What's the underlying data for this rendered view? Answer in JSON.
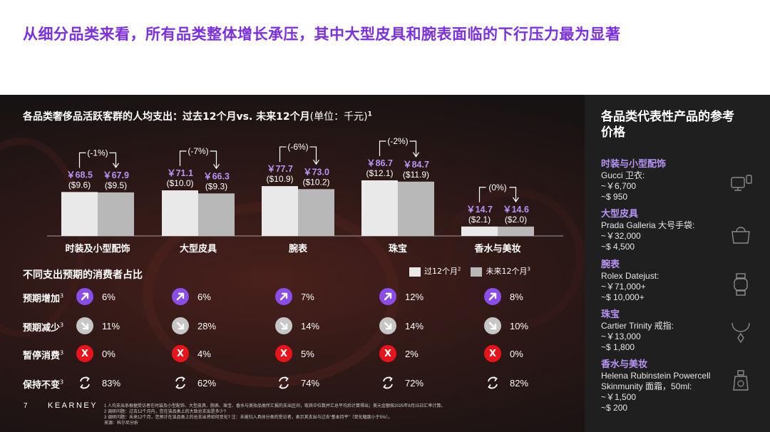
{
  "headline": "从细分品类来看，所有品类整体增长承压，其中大型皮具和腕表面临的下行压力最为显著",
  "colors": {
    "accent": "#7b2fe0",
    "bar_past": "#e9e9e9",
    "bar_future": "#b8b8b8",
    "value_label": "#b794f6",
    "stop_red": "#e8141c"
  },
  "chart_title": {
    "main": "各品类奢侈品活跃客群的人均支出：过去12个月vs. 未来12个月",
    "unit": "(单位：千元)",
    "footnote_mark": "1"
  },
  "legend": {
    "past": "过12个月",
    "past_mark": "2",
    "future": "未来12个月",
    "future_mark": "3"
  },
  "chart_data": {
    "type": "bar",
    "title": "各品类奢侈品活跃客群的人均支出：过去12个月vs. 未来12个月(单位：千元)",
    "categories": [
      "时装及小型配饰",
      "大型皮具",
      "腕表",
      "珠宝",
      "香水与美妆"
    ],
    "series": [
      {
        "name": "过12个月",
        "values": [
          68.5,
          71.1,
          77.7,
          86.7,
          14.7
        ],
        "labels": [
          "￥68.5",
          "￥71.1",
          "￥77.7",
          "￥86.7",
          "￥14.7"
        ],
        "usd": [
          "($9.6)",
          "($10.0)",
          "($10.9)",
          "($12.1)",
          "($2.1)"
        ]
      },
      {
        "name": "未来12个月",
        "values": [
          67.9,
          66.3,
          73.0,
          84.7,
          14.6
        ],
        "labels": [
          "￥67.9",
          "￥66.3",
          "￥73.0",
          "￥84.7",
          "￥14.6"
        ],
        "usd": [
          "($9.5)",
          "($9.3)",
          "($10.2)",
          "($11.9)",
          "($2.0)"
        ]
      }
    ],
    "changes": [
      "(-1%)",
      "(-7%)",
      "(-6%)",
      "(-2%)",
      "(0%)"
    ],
    "ylim": [
      0,
      100
    ],
    "legend_position": "bottom-right",
    "grid": false
  },
  "table": {
    "title": "不同支出预期的消费者占比",
    "rows": [
      {
        "label": "预期增加",
        "mark": "3",
        "icon": "arrow-up-icon",
        "values": [
          "6%",
          "6%",
          "7%",
          "12%",
          "8%"
        ]
      },
      {
        "label": "预期减少",
        "mark": "3",
        "icon": "arrow-down-icon",
        "values": [
          "11%",
          "28%",
          "14%",
          "14%",
          "10%"
        ]
      },
      {
        "label": "暂停消费",
        "mark": "3",
        "icon": "x-stop-icon",
        "values": [
          "0%",
          "4%",
          "5%",
          "2%",
          "0%"
        ]
      },
      {
        "label": "保持不变",
        "mark": "3",
        "icon": "cycle-arrows-icon",
        "values": [
          "83%",
          "62%",
          "74%",
          "72%",
          "82%"
        ]
      }
    ]
  },
  "sidebar": {
    "title": "各品类代表性产品的参考价格",
    "items": [
      {
        "category": "时装与小型配饰",
        "lines": [
          "Gucci 卫衣:",
          "~￥6,700",
          "~$ 950"
        ],
        "icon": "clothing-icon"
      },
      {
        "category": "大型皮具",
        "lines": [
          "Prada Galleria 大号手袋:",
          "~￥32,000",
          "~$ 4,500"
        ],
        "icon": "handbag-icon"
      },
      {
        "category": "腕表",
        "lines": [
          "Rolex Datejust:",
          "~￥71,000+",
          "~$ 10,000+"
        ],
        "icon": "watch-icon"
      },
      {
        "category": "珠宝",
        "lines": [
          "Cartier Trinity 戒指:",
          "~￥13,000",
          "~$ 1,800"
        ],
        "icon": "necklace-icon"
      },
      {
        "category": "香水与美妆",
        "lines": [
          "Helena Rubinstein Powercell",
          "Skinmunity 面霜，50ml:",
          "~￥1,500",
          "~$ 200"
        ],
        "icon": "perfume-icon"
      }
    ]
  },
  "footer": {
    "page": "7",
    "brand": "KEARNEY",
    "notes": [
      "1 人均支出系根据受访者在时装及小型配饰、大型皮具、腕表、珠宝、香水与美妆品类所汇报的支出区间，取其中位数并汇总平均后计算得出；美元金额按2025年8月15日汇率计算。",
      "2 调研问题：过去12个月内，您在该品类上的大致总支出是多少?",
      "3 调研问题：未来12个月，您预计在该品类上的总支出将如何变化? 注：未被归入具体分类的受访者，表示其支出与过去“基本持平”（变化幅度小于5%）。",
      "来源：科尔尼分析"
    ]
  }
}
